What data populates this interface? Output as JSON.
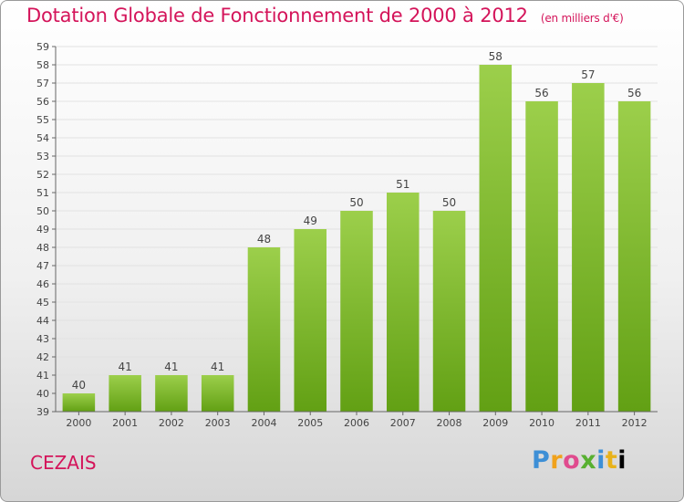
{
  "title": "Dotation Globale de Fonctionnement de 2000 à 2012",
  "subtitle": "(en milliers d'€)",
  "commune": "CEZAIS",
  "logo": {
    "letters": [
      "P",
      "r",
      "o",
      "x",
      "i",
      "t",
      "i"
    ]
  },
  "colors": {
    "title": "#d4145a",
    "bar_light": "#9ccf4b",
    "bar_dark": "#62a014"
  },
  "chart_data": {
    "type": "bar",
    "title": "Dotation Globale de Fonctionnement de 2000 à 2012",
    "subtitle": "(en milliers d'€)",
    "xlabel": "",
    "ylabel": "",
    "categories": [
      "2000",
      "2001",
      "2002",
      "2003",
      "2004",
      "2005",
      "2006",
      "2007",
      "2008",
      "2009",
      "2010",
      "2011",
      "2012"
    ],
    "values": [
      40,
      41,
      41,
      41,
      48,
      49,
      50,
      51,
      50,
      58,
      56,
      57,
      56
    ],
    "ylim": [
      39,
      59
    ],
    "yticks": [
      39,
      40,
      41,
      42,
      43,
      44,
      45,
      46,
      47,
      48,
      49,
      50,
      51,
      52,
      53,
      54,
      55,
      56,
      57,
      58,
      59
    ],
    "grid": true,
    "legend": "none"
  }
}
